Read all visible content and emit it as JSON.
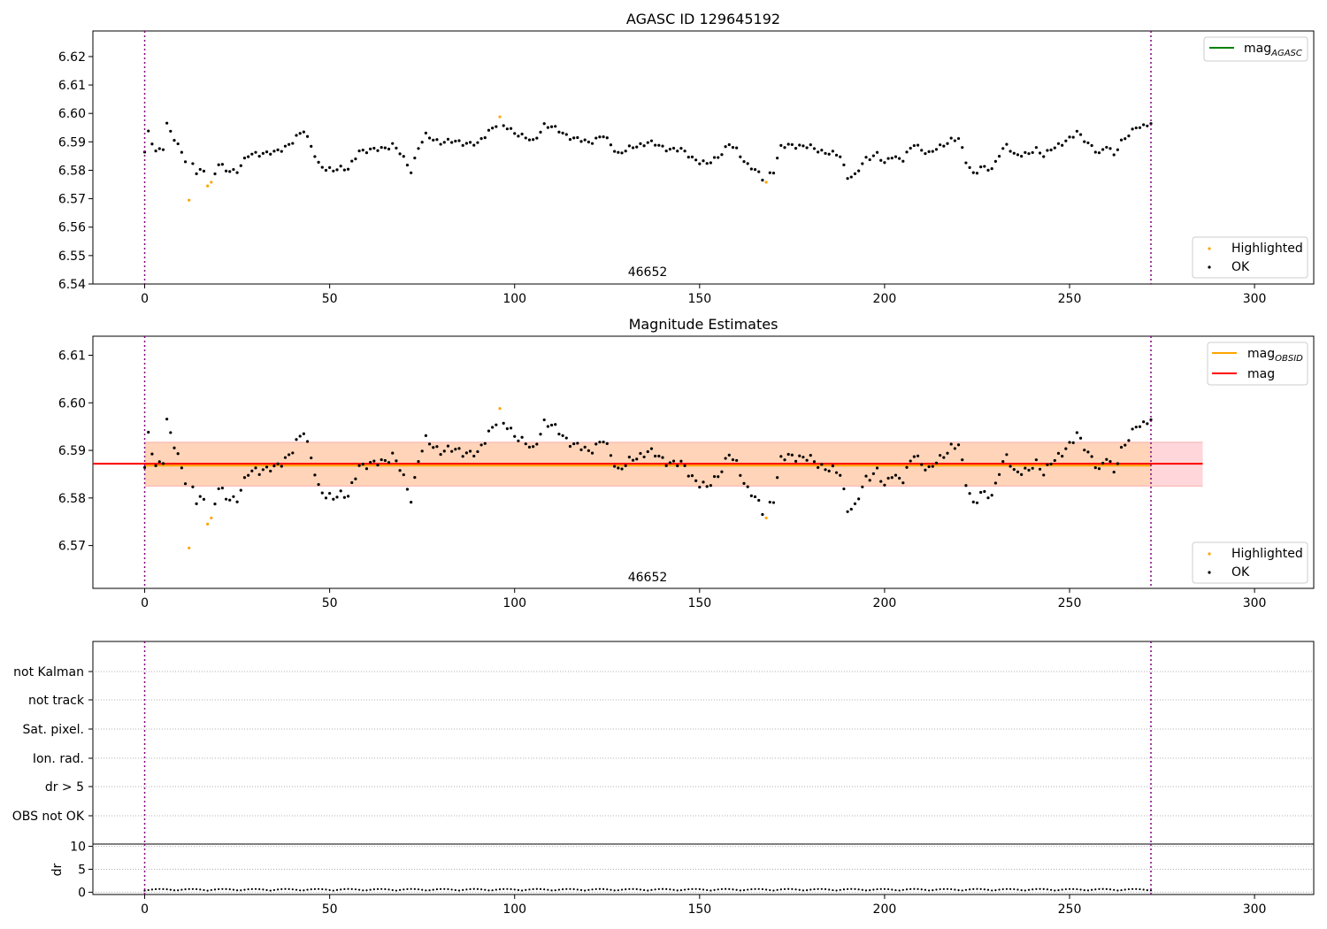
{
  "chart_data": [
    {
      "type": "scatter",
      "title": "AGASC ID 129645192",
      "xlim": [
        -14,
        316
      ],
      "ylim": [
        6.54,
        6.629
      ],
      "yticks": [
        "6.54",
        "6.55",
        "6.56",
        "6.57",
        "6.58",
        "6.59",
        "6.60",
        "6.61",
        "6.62"
      ],
      "xticks": [
        "0",
        "50",
        "100",
        "150",
        "200",
        "250",
        "300"
      ],
      "vlines": [
        0,
        272
      ],
      "annotation": "46652",
      "legend_lines": [
        {
          "name": "mag",
          "sub": "AGASC",
          "color": "#008000"
        }
      ],
      "legend_points": [
        {
          "name": "Highlighted",
          "color": "#ffa500"
        },
        {
          "name": "OK",
          "color": "#000000"
        }
      ]
    },
    {
      "type": "scatter",
      "title": "Magnitude Estimates",
      "xlim": [
        -14,
        316
      ],
      "ylim": [
        6.561,
        6.614
      ],
      "yticks": [
        "6.57",
        "6.58",
        "6.59",
        "6.60",
        "6.61"
      ],
      "xticks": [
        "0",
        "50",
        "100",
        "150",
        "200",
        "250",
        "300"
      ],
      "vlines": [
        0,
        272
      ],
      "annotation": "46652",
      "mag_line": 6.5872,
      "mag_obsid_line": 6.5868,
      "band": [
        6.5825,
        6.5917
      ],
      "legend_lines": [
        {
          "name": "mag",
          "sub": "OBSID",
          "color": "#ffa500"
        },
        {
          "name": "mag",
          "sub": "",
          "color": "#ff0000"
        }
      ],
      "legend_points": [
        {
          "name": "Highlighted",
          "color": "#ffa500"
        },
        {
          "name": "OK",
          "color": "#000000"
        }
      ]
    },
    {
      "type": "scatter",
      "categories": [
        "not Kalman",
        "not track",
        "Sat. pixel.",
        "Ion. rad.",
        "dr > 5",
        "OBS not OK"
      ],
      "xticks": [
        "0",
        "50",
        "100",
        "150",
        "200",
        "250",
        "300"
      ],
      "vlines": [
        0,
        272
      ]
    },
    {
      "type": "scatter",
      "ylabel": "dr",
      "yticks": [
        "0",
        "5",
        "10"
      ],
      "ylim": [
        -0.5,
        10.5
      ],
      "xticks": [
        "0",
        "50",
        "100",
        "150",
        "200",
        "250",
        "300"
      ],
      "vlines": [
        0,
        272
      ]
    }
  ],
  "series": {
    "n": 273,
    "highlighted": [
      {
        "x": 12,
        "y": 6.5695
      },
      {
        "x": 17,
        "y": 6.5745
      },
      {
        "x": 18,
        "y": 6.5758
      },
      {
        "x": 96,
        "y": 6.5988
      },
      {
        "x": 168,
        "y": 6.5758
      }
    ],
    "mag_keypoints": [
      [
        0,
        6.586
      ],
      [
        1,
        6.593
      ],
      [
        3,
        6.587
      ],
      [
        5,
        6.588
      ],
      [
        6,
        6.596
      ],
      [
        7,
        6.593
      ],
      [
        9,
        6.589
      ],
      [
        11,
        6.584
      ],
      [
        13,
        6.582
      ],
      [
        14,
        6.579
      ],
      [
        16,
        6.58
      ],
      [
        18,
        6.576
      ],
      [
        20,
        6.582
      ],
      [
        22,
        6.58
      ],
      [
        25,
        6.58
      ],
      [
        28,
        6.585
      ],
      [
        30,
        6.586
      ],
      [
        35,
        6.586
      ],
      [
        40,
        6.59
      ],
      [
        43,
        6.594
      ],
      [
        45,
        6.589
      ],
      [
        47,
        6.582
      ],
      [
        49,
        6.58
      ],
      [
        53,
        6.581
      ],
      [
        55,
        6.58
      ],
      [
        58,
        6.587
      ],
      [
        62,
        6.587
      ],
      [
        65,
        6.588
      ],
      [
        67,
        6.589
      ],
      [
        69,
        6.586
      ],
      [
        71,
        6.582
      ],
      [
        72,
        6.58
      ],
      [
        74,
        6.588
      ],
      [
        76,
        6.592
      ],
      [
        80,
        6.59
      ],
      [
        85,
        6.59
      ],
      [
        90,
        6.589
      ],
      [
        93,
        6.594
      ],
      [
        95,
        6.596
      ],
      [
        98,
        6.595
      ],
      [
        102,
        6.592
      ],
      [
        105,
        6.59
      ],
      [
        108,
        6.596
      ],
      [
        112,
        6.594
      ],
      [
        116,
        6.591
      ],
      [
        120,
        6.59
      ],
      [
        124,
        6.592
      ],
      [
        128,
        6.586
      ],
      [
        132,
        6.588
      ],
      [
        136,
        6.59
      ],
      [
        140,
        6.588
      ],
      [
        145,
        6.587
      ],
      [
        150,
        6.583
      ],
      [
        152,
        6.582
      ],
      [
        155,
        6.585
      ],
      [
        158,
        6.589
      ],
      [
        160,
        6.587
      ],
      [
        163,
        6.582
      ],
      [
        165,
        6.58
      ],
      [
        167,
        6.577
      ],
      [
        170,
        6.58
      ],
      [
        172,
        6.588
      ],
      [
        175,
        6.589
      ],
      [
        180,
        6.588
      ],
      [
        185,
        6.586
      ],
      [
        188,
        6.585
      ],
      [
        190,
        6.578
      ],
      [
        192,
        6.578
      ],
      [
        195,
        6.584
      ],
      [
        198,
        6.586
      ],
      [
        200,
        6.582
      ],
      [
        202,
        6.585
      ],
      [
        205,
        6.584
      ],
      [
        208,
        6.589
      ],
      [
        212,
        6.586
      ],
      [
        215,
        6.588
      ],
      [
        218,
        6.591
      ],
      [
        220,
        6.591
      ],
      [
        222,
        6.583
      ],
      [
        224,
        6.579
      ],
      [
        226,
        6.581
      ],
      [
        229,
        6.58
      ],
      [
        231,
        6.586
      ],
      [
        233,
        6.589
      ],
      [
        235,
        6.585
      ],
      [
        238,
        6.586
      ],
      [
        241,
        6.587
      ],
      [
        243,
        6.585
      ],
      [
        245,
        6.588
      ],
      [
        248,
        6.589
      ],
      [
        250,
        6.591
      ],
      [
        252,
        6.594
      ],
      [
        255,
        6.589
      ],
      [
        258,
        6.586
      ],
      [
        260,
        6.589
      ],
      [
        262,
        6.585
      ],
      [
        264,
        6.59
      ],
      [
        266,
        6.593
      ],
      [
        268,
        6.595
      ],
      [
        270,
        6.595
      ],
      [
        272,
        6.597
      ]
    ],
    "dr_base": 0.35
  }
}
